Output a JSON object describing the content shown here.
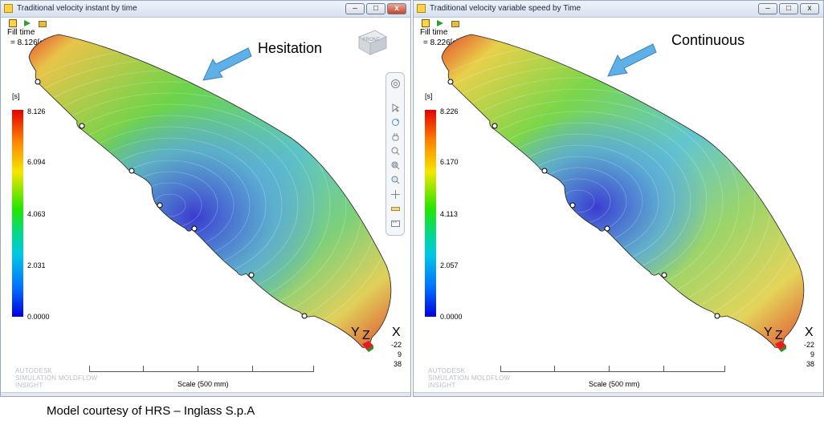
{
  "windows": {
    "left": {
      "title": "Traditional velocity  instant by time",
      "fill_label": "Fill time",
      "time_readout": "= 8.126[s]",
      "unit": "[s]",
      "scale_values": [
        "8.126",
        "6.094",
        "4.063",
        "2.031",
        "0.0000"
      ],
      "annotation": "Hesitation",
      "navcube_label": "FRONT",
      "brand_lines": [
        "AUTODESK",
        "SIMULATION MOLDFLOW",
        "INSIGHT"
      ],
      "scale_text": "Scale (500 mm)",
      "axes": {
        "y": "Y",
        "z": "Z",
        "x": "X"
      },
      "axis_numbers": [
        "-22",
        "9",
        "38"
      ]
    },
    "right": {
      "title": "Traditional velocity variable speed by Time",
      "fill_label": "Fill time",
      "time_readout": "= 8.226[s]",
      "unit": "[s]",
      "scale_values": [
        "8.226",
        "6.170",
        "4.113",
        "2.057",
        "0.0000"
      ],
      "annotation": "Continuous",
      "brand_lines": [
        "AUTODESK",
        "SIMULATION MOLDFLOW",
        "INSIGHT"
      ],
      "scale_text": "Scale (500 mm)",
      "axes": {
        "y": "Y",
        "z": "Z",
        "x": "X"
      },
      "axis_numbers": [
        "-22",
        "9",
        "38"
      ]
    }
  },
  "window_buttons": {
    "minimize": "–",
    "restore": "□",
    "close": "x"
  },
  "caption": "Model courtesy  of HRS – Inglass S.p.A",
  "colors": {
    "arrow": "#5fb0e6",
    "scale_top": "#e60000",
    "scale_bottom": "#0000e0"
  }
}
